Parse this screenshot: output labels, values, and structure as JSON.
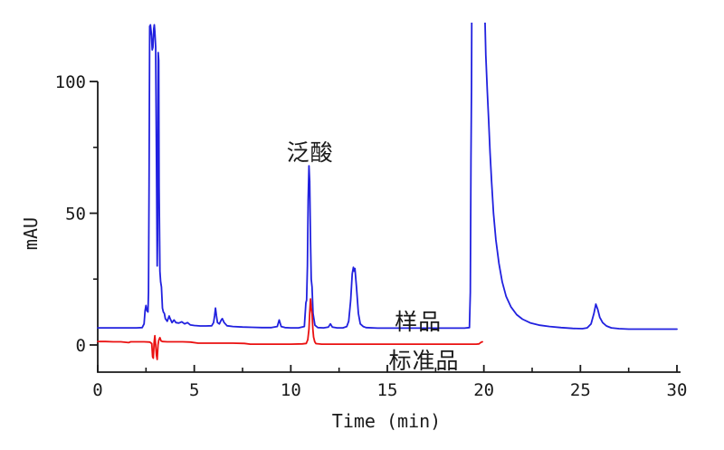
{
  "chart_data": {
    "type": "line",
    "title": "",
    "xlabel": "Time (min)",
    "ylabel": "mAU",
    "xlim": [
      0,
      30
    ],
    "ylim": [
      -10.3,
      123
    ],
    "x_ticks_major": [
      0,
      5,
      10,
      15,
      20,
      25,
      30
    ],
    "x_ticks_minor": [
      2.5,
      7.5,
      12.5,
      17.5,
      22.5,
      27.5
    ],
    "y_ticks_major": [
      0,
      50,
      100
    ],
    "y_ticks_minor": [
      25,
      75
    ],
    "grid": "off",
    "legend_position": "inline-annotations",
    "axis_color": "#1a1a1a",
    "background_color": "#ffffff",
    "annotations": [
      {
        "name": "peak-label-pantothenic-acid",
        "text": "泛酸",
        "t": 11.0,
        "mAU": 73.5
      },
      {
        "name": "series-label-sample",
        "text": "样品",
        "t": 16.6,
        "mAU": 9.3
      },
      {
        "name": "series-label-standard",
        "text": "标准品",
        "t": 16.9,
        "mAU": -5.5
      }
    ],
    "series": [
      {
        "name": "sample",
        "label": "样品",
        "color": "#2121df",
        "points": [
          [
            0,
            6.5
          ],
          [
            0.5,
            6.5
          ],
          [
            1,
            6.5
          ],
          [
            1.5,
            6.5
          ],
          [
            2.0,
            6.5
          ],
          [
            2.3,
            6.6
          ],
          [
            2.4,
            8
          ],
          [
            2.45,
            13
          ],
          [
            2.5,
            15
          ],
          [
            2.55,
            13
          ],
          [
            2.6,
            12.5
          ],
          [
            2.63,
            20
          ],
          [
            2.66,
            60
          ],
          [
            2.69,
            121
          ],
          [
            2.71,
            118
          ],
          [
            2.73,
            121.5
          ],
          [
            2.78,
            118
          ],
          [
            2.82,
            112
          ],
          [
            2.86,
            113
          ],
          [
            2.9,
            120
          ],
          [
            2.93,
            121.5
          ],
          [
            2.96,
            119
          ],
          [
            3.0,
            113
          ],
          [
            3.05,
            60
          ],
          [
            3.08,
            30
          ],
          [
            3.1,
            40
          ],
          [
            3.13,
            111
          ],
          [
            3.16,
            108
          ],
          [
            3.18,
            60
          ],
          [
            3.22,
            28
          ],
          [
            3.26,
            24
          ],
          [
            3.3,
            22
          ],
          [
            3.35,
            14
          ],
          [
            3.4,
            12.5
          ],
          [
            3.45,
            12
          ],
          [
            3.5,
            10
          ],
          [
            3.6,
            9
          ],
          [
            3.7,
            11
          ],
          [
            3.75,
            10
          ],
          [
            3.85,
            8.5
          ],
          [
            3.95,
            9.5
          ],
          [
            4.05,
            8.5
          ],
          [
            4.2,
            8.3
          ],
          [
            4.35,
            8.8
          ],
          [
            4.5,
            8
          ],
          [
            4.65,
            8.5
          ],
          [
            4.8,
            7.6
          ],
          [
            5.0,
            7.4
          ],
          [
            5.3,
            7.2
          ],
          [
            5.6,
            7.2
          ],
          [
            5.9,
            7.3
          ],
          [
            6.0,
            8.5
          ],
          [
            6.05,
            11
          ],
          [
            6.1,
            14
          ],
          [
            6.15,
            11
          ],
          [
            6.2,
            8.5
          ],
          [
            6.3,
            8
          ],
          [
            6.4,
            9.5
          ],
          [
            6.45,
            10
          ],
          [
            6.55,
            8.5
          ],
          [
            6.7,
            7.3
          ],
          [
            7.0,
            7
          ],
          [
            7.5,
            6.8
          ],
          [
            8.0,
            6.7
          ],
          [
            8.5,
            6.6
          ],
          [
            9.0,
            6.6
          ],
          [
            9.3,
            7
          ],
          [
            9.4,
            9.5
          ],
          [
            9.5,
            7
          ],
          [
            9.7,
            6.6
          ],
          [
            10.0,
            6.5
          ],
          [
            10.4,
            6.5
          ],
          [
            10.7,
            7
          ],
          [
            10.78,
            16
          ],
          [
            10.82,
            17
          ],
          [
            10.86,
            30
          ],
          [
            10.9,
            55
          ],
          [
            10.94,
            68
          ],
          [
            10.98,
            62
          ],
          [
            11.02,
            40
          ],
          [
            11.06,
            25
          ],
          [
            11.1,
            22
          ],
          [
            11.15,
            12
          ],
          [
            11.25,
            7.5
          ],
          [
            11.4,
            6.6
          ],
          [
            11.7,
            6.5
          ],
          [
            11.95,
            6.8
          ],
          [
            12.05,
            8
          ],
          [
            12.15,
            6.8
          ],
          [
            12.4,
            6.5
          ],
          [
            12.7,
            6.5
          ],
          [
            12.9,
            7
          ],
          [
            13.0,
            9
          ],
          [
            13.1,
            17
          ],
          [
            13.18,
            27
          ],
          [
            13.24,
            29.5
          ],
          [
            13.28,
            28
          ],
          [
            13.32,
            29
          ],
          [
            13.4,
            22
          ],
          [
            13.5,
            12
          ],
          [
            13.6,
            8
          ],
          [
            13.75,
            7
          ],
          [
            13.9,
            6.6
          ],
          [
            14.5,
            6.4
          ],
          [
            15.5,
            6.4
          ],
          [
            16.5,
            6.4
          ],
          [
            17.5,
            6.4
          ],
          [
            18.5,
            6.4
          ],
          [
            19.0,
            6.4
          ],
          [
            19.25,
            6.6
          ],
          [
            19.3,
            20
          ],
          [
            19.33,
            70
          ],
          [
            19.36,
            98
          ],
          [
            19.38,
            135
          ],
          [
            20.02,
            135
          ],
          [
            20.1,
            110
          ],
          [
            20.18,
            96
          ],
          [
            20.25,
            85
          ],
          [
            20.32,
            73
          ],
          [
            20.4,
            62
          ],
          [
            20.5,
            50
          ],
          [
            20.62,
            40
          ],
          [
            20.78,
            31
          ],
          [
            20.95,
            24
          ],
          [
            21.15,
            18.5
          ],
          [
            21.4,
            14.5
          ],
          [
            21.7,
            11.5
          ],
          [
            22.0,
            9.8
          ],
          [
            22.4,
            8.4
          ],
          [
            22.9,
            7.5
          ],
          [
            23.4,
            7
          ],
          [
            24.0,
            6.6
          ],
          [
            24.6,
            6.3
          ],
          [
            25.1,
            6.2
          ],
          [
            25.35,
            6.5
          ],
          [
            25.55,
            8
          ],
          [
            25.7,
            12
          ],
          [
            25.8,
            15.5
          ],
          [
            25.9,
            13.5
          ],
          [
            26.0,
            10.5
          ],
          [
            26.15,
            8.5
          ],
          [
            26.35,
            7.2
          ],
          [
            26.6,
            6.5
          ],
          [
            27.0,
            6.2
          ],
          [
            27.5,
            6.0
          ],
          [
            28.2,
            6.0
          ],
          [
            29.0,
            6.0
          ],
          [
            30.0,
            6.0
          ]
        ]
      },
      {
        "name": "standard",
        "label": "标准品",
        "color": "#ea1111",
        "points": [
          [
            0,
            1.3
          ],
          [
            0.4,
            1.3
          ],
          [
            0.8,
            1.2
          ],
          [
            1.2,
            1.2
          ],
          [
            1.6,
            0.9
          ],
          [
            1.7,
            1.2
          ],
          [
            2.0,
            1.2
          ],
          [
            2.4,
            1.2
          ],
          [
            2.7,
            1.1
          ],
          [
            2.8,
            0.5
          ],
          [
            2.84,
            -4.5
          ],
          [
            2.88,
            -5
          ],
          [
            2.92,
            1
          ],
          [
            2.96,
            3.5
          ],
          [
            3.0,
            0
          ],
          [
            3.04,
            -4
          ],
          [
            3.08,
            -5.5
          ],
          [
            3.12,
            0
          ],
          [
            3.16,
            1.8
          ],
          [
            3.22,
            2.8
          ],
          [
            3.28,
            1.5
          ],
          [
            3.35,
            1.3
          ],
          [
            3.6,
            1.2
          ],
          [
            4.0,
            1.2
          ],
          [
            4.4,
            1.2
          ],
          [
            4.8,
            1.1
          ],
          [
            5.2,
            0.7
          ],
          [
            5.8,
            0.7
          ],
          [
            6.4,
            0.7
          ],
          [
            7.0,
            0.7
          ],
          [
            7.6,
            0.6
          ],
          [
            7.9,
            0.3
          ],
          [
            8.5,
            0.3
          ],
          [
            9.2,
            0.3
          ],
          [
            10.0,
            0.3
          ],
          [
            10.6,
            0.4
          ],
          [
            10.8,
            0.6
          ],
          [
            10.88,
            2
          ],
          [
            10.94,
            6
          ],
          [
            10.98,
            12
          ],
          [
            11.02,
            17.5
          ],
          [
            11.06,
            14
          ],
          [
            11.1,
            12
          ],
          [
            11.14,
            6
          ],
          [
            11.18,
            3
          ],
          [
            11.24,
            1.2
          ],
          [
            11.3,
            0.5
          ],
          [
            11.6,
            0.3
          ],
          [
            12.5,
            0.3
          ],
          [
            13.5,
            0.3
          ],
          [
            14.5,
            0.3
          ],
          [
            15.5,
            0.3
          ],
          [
            16.5,
            0.3
          ],
          [
            17.5,
            0.3
          ],
          [
            18.5,
            0.3
          ],
          [
            19.2,
            0.3
          ],
          [
            19.6,
            0.3
          ],
          [
            19.75,
            0.4
          ],
          [
            19.85,
            1.0
          ],
          [
            19.92,
            1.2
          ]
        ]
      }
    ]
  }
}
